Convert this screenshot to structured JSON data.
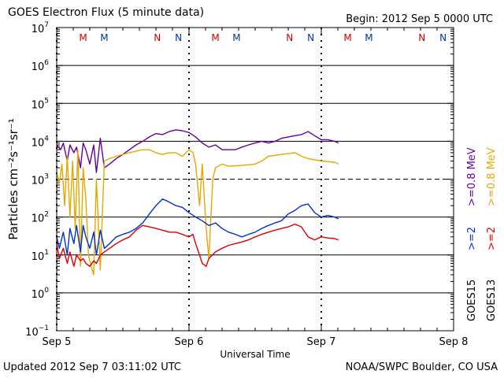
{
  "header": {
    "title": "GOES Electron Flux (5 minute data)",
    "begin": "Begin: 2012 Sep 5 0000 UTC"
  },
  "footer": {
    "updated": "Updated 2012 Sep  7 03:11:02 UTC",
    "credit": "NOAA/SWPC Boulder, CO USA"
  },
  "chart_data": {
    "type": "line",
    "title": "GOES Electron Flux (5 minute data)",
    "xlabel": "Universal Time",
    "ylabel": "Particles cm⁻²s⁻¹sr⁻¹",
    "yscale": "log",
    "ylim": [
      0.1,
      10000000
    ],
    "xlim": [
      0,
      3
    ],
    "x_ticks": [
      {
        "x": 0,
        "label": "Sep 5"
      },
      {
        "x": 1,
        "label": "Sep 6"
      },
      {
        "x": 2,
        "label": "Sep 7"
      },
      {
        "x": 3,
        "label": "Sep 8"
      }
    ],
    "y_ticks": [
      {
        "value": 10000000,
        "base": "10",
        "exp": "7"
      },
      {
        "value": 1000000,
        "base": "10",
        "exp": "6"
      },
      {
        "value": 100000,
        "base": "10",
        "exp": "5"
      },
      {
        "value": 10000,
        "base": "10",
        "exp": "4"
      },
      {
        "value": 1000,
        "base": "10",
        "exp": "3"
      },
      {
        "value": 100,
        "base": "10",
        "exp": "2"
      },
      {
        "value": 10,
        "base": "10",
        "exp": "1"
      },
      {
        "value": 1,
        "base": "10",
        "exp": "0"
      },
      {
        "value": 0.1,
        "base": "10",
        "exp": "−1"
      }
    ],
    "grid": "horizontal lines at each decade; dashed at 10^3",
    "markers": [
      {
        "x": 0.2,
        "label": "M",
        "color": "#cc0000"
      },
      {
        "x": 0.36,
        "label": "M",
        "color": "#0033aa"
      },
      {
        "x": 0.76,
        "label": "N",
        "color": "#cc0000"
      },
      {
        "x": 0.92,
        "label": "N",
        "color": "#0033aa"
      },
      {
        "x": 1.2,
        "label": "M",
        "color": "#cc0000"
      },
      {
        "x": 1.36,
        "label": "M",
        "color": "#0033aa"
      },
      {
        "x": 1.76,
        "label": "N",
        "color": "#cc0000"
      },
      {
        "x": 1.92,
        "label": "N",
        "color": "#0033aa"
      },
      {
        "x": 2.2,
        "label": "M",
        "color": "#cc0000"
      },
      {
        "x": 2.36,
        "label": "M",
        "color": "#0033aa"
      },
      {
        "x": 2.76,
        "label": "N",
        "color": "#cc0000"
      },
      {
        "x": 2.92,
        "label": "N",
        "color": "#0033aa"
      }
    ],
    "dotted_verticals": [
      0,
      1,
      2
    ],
    "satellite_labels": [
      {
        "text": "GOES15",
        "color": "#000000"
      },
      {
        "text": "GOES13",
        "color": "#000000"
      }
    ],
    "series_labels": [
      {
        "text": ">=2",
        "color": "#0033cc"
      },
      {
        "text": ">=0.8 MeV",
        "color": "#660099"
      },
      {
        "text": ">=2",
        "color": "#dd0000"
      },
      {
        "text": ">=0.8 MeV",
        "color": "#e6a700"
      }
    ],
    "series": [
      {
        "name": "GOES15 >=0.8 MeV",
        "color": "#660099",
        "x": [
          0.0,
          0.03,
          0.05,
          0.08,
          0.1,
          0.13,
          0.15,
          0.18,
          0.2,
          0.22,
          0.25,
          0.28,
          0.3,
          0.33,
          0.36,
          0.4,
          0.45,
          0.5,
          0.55,
          0.6,
          0.65,
          0.7,
          0.75,
          0.8,
          0.85,
          0.9,
          0.95,
          1.0,
          1.05,
          1.1,
          1.15,
          1.2,
          1.25,
          1.3,
          1.35,
          1.4,
          1.45,
          1.5,
          1.55,
          1.6,
          1.65,
          1.7,
          1.75,
          1.8,
          1.85,
          1.9,
          1.95,
          2.0,
          2.05,
          2.1,
          2.13
        ],
        "y": [
          8000,
          6000,
          9000,
          3000,
          8000,
          5000,
          7000,
          2000,
          9000,
          6000,
          2500,
          8000,
          1500,
          12000,
          2000,
          2500,
          3500,
          4500,
          6000,
          8000,
          10000,
          13000,
          16000,
          15000,
          18000,
          20000,
          19000,
          17000,
          13000,
          9000,
          7000,
          8000,
          6000,
          6000,
          6000,
          7000,
          8000,
          9000,
          10000,
          9000,
          10000,
          12000,
          13000,
          14000,
          15000,
          18000,
          14000,
          11000,
          11000,
          10000,
          9000
        ]
      },
      {
        "name": "GOES13 >=0.8 MeV",
        "color": "#e6a700",
        "x": [
          0.0,
          0.02,
          0.04,
          0.06,
          0.08,
          0.1,
          0.12,
          0.14,
          0.16,
          0.18,
          0.2,
          0.22,
          0.24,
          0.26,
          0.28,
          0.3,
          0.33,
          0.36,
          0.4,
          0.45,
          0.5,
          0.55,
          0.6,
          0.65,
          0.7,
          0.75,
          0.8,
          0.85,
          0.9,
          0.95,
          1.0,
          1.03,
          1.05,
          1.08,
          1.1,
          1.13,
          1.15,
          1.18,
          1.2,
          1.25,
          1.3,
          1.4,
          1.5,
          1.55,
          1.6,
          1.7,
          1.8,
          1.85,
          1.9,
          2.0,
          2.1,
          2.13
        ],
        "y": [
          1500,
          800,
          2500,
          200,
          4000,
          100,
          3000,
          50,
          6000,
          5,
          2000,
          300,
          10,
          5,
          3,
          1000,
          4,
          3000,
          3500,
          4000,
          4500,
          5000,
          5500,
          6000,
          6000,
          5000,
          4500,
          5000,
          5000,
          4000,
          6000,
          5000,
          2500,
          200,
          2500,
          50,
          8,
          1000,
          2000,
          2500,
          2200,
          2300,
          2500,
          3000,
          4000,
          4500,
          5000,
          4000,
          3500,
          3000,
          2800,
          2500
        ]
      },
      {
        "name": "GOES15 >=2 MeV",
        "color": "#0033cc",
        "x": [
          0.0,
          0.02,
          0.05,
          0.08,
          0.1,
          0.13,
          0.15,
          0.18,
          0.2,
          0.22,
          0.25,
          0.28,
          0.3,
          0.33,
          0.36,
          0.4,
          0.45,
          0.5,
          0.55,
          0.6,
          0.65,
          0.7,
          0.75,
          0.8,
          0.85,
          0.9,
          0.95,
          1.0,
          1.05,
          1.1,
          1.15,
          1.2,
          1.25,
          1.3,
          1.35,
          1.4,
          1.45,
          1.5,
          1.55,
          1.6,
          1.65,
          1.7,
          1.75,
          1.8,
          1.85,
          1.9,
          1.95,
          2.0,
          2.05,
          2.1,
          2.13
        ],
        "y": [
          30,
          15,
          40,
          10,
          50,
          20,
          60,
          12,
          60,
          30,
          15,
          40,
          10,
          45,
          15,
          20,
          30,
          35,
          40,
          50,
          70,
          120,
          200,
          300,
          250,
          200,
          180,
          130,
          100,
          80,
          60,
          70,
          50,
          40,
          35,
          30,
          35,
          40,
          50,
          60,
          70,
          80,
          120,
          150,
          200,
          220,
          130,
          100,
          110,
          100,
          90
        ]
      },
      {
        "name": "GOES13 >=2 MeV",
        "color": "#dd0000",
        "x": [
          0.0,
          0.02,
          0.05,
          0.08,
          0.1,
          0.13,
          0.15,
          0.18,
          0.2,
          0.22,
          0.25,
          0.28,
          0.3,
          0.33,
          0.36,
          0.4,
          0.45,
          0.5,
          0.55,
          0.6,
          0.65,
          0.7,
          0.75,
          0.8,
          0.85,
          0.9,
          0.95,
          1.0,
          1.03,
          1.05,
          1.08,
          1.1,
          1.13,
          1.15,
          1.2,
          1.25,
          1.3,
          1.35,
          1.4,
          1.45,
          1.5,
          1.55,
          1.6,
          1.65,
          1.7,
          1.75,
          1.8,
          1.85,
          1.9,
          1.95,
          2.0,
          2.05,
          2.1,
          2.13
        ],
        "y": [
          20,
          8,
          15,
          6,
          12,
          5,
          10,
          7,
          8,
          6,
          5,
          7,
          6,
          10,
          12,
          15,
          20,
          25,
          30,
          45,
          60,
          55,
          50,
          45,
          40,
          40,
          35,
          30,
          35,
          20,
          10,
          6,
          5,
          8,
          12,
          15,
          18,
          20,
          22,
          25,
          30,
          35,
          40,
          45,
          50,
          55,
          65,
          55,
          30,
          25,
          30,
          28,
          27,
          25
        ]
      }
    ]
  }
}
